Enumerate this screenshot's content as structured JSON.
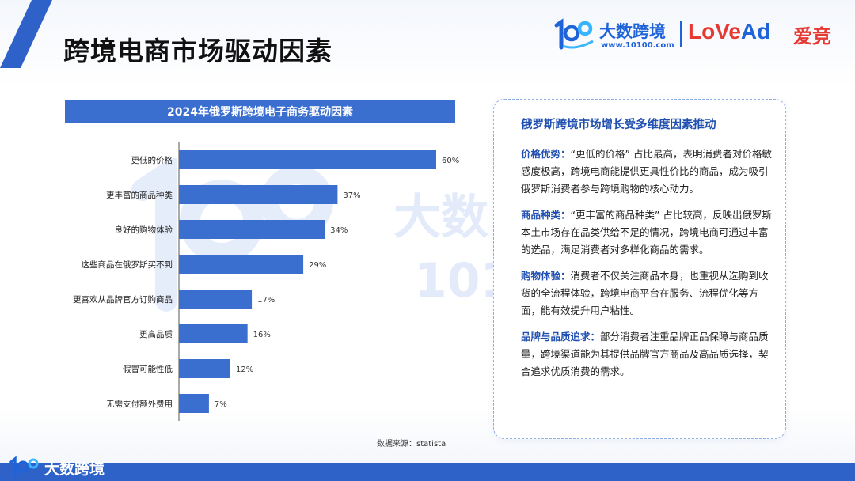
{
  "header": {
    "title": "跨境电商市场驱动因素",
    "brand_cn": "大数跨境",
    "brand_url": "www.10100.com",
    "partner_brand_love": "LoVe",
    "partner_brand_ad": "Ad",
    "partner_brand_cn": "爱竞"
  },
  "colors": {
    "accent": "#3b6fcf",
    "brand_blue": "#1f63d8",
    "partner_red": "#e53a33",
    "footer_bar": "#2e62c9"
  },
  "chart_data": {
    "type": "bar",
    "orientation": "horizontal",
    "title": "2024年俄罗斯跨境电子商务驱动因素",
    "categories": [
      "更低的价格",
      "更丰富的商品种类",
      "良好的购物体验",
      "这些商品在俄罗斯买不到",
      "更喜欢从品牌官方订购商品",
      "更高品质",
      "假冒可能性低",
      "无需支付额外费用"
    ],
    "values": [
      60,
      37,
      34,
      29,
      17,
      16,
      12,
      7
    ],
    "value_labels": [
      "60%",
      "37%",
      "34%",
      "29%",
      "17%",
      "16%",
      "12%",
      "7%"
    ],
    "unit": "%",
    "xlim": [
      0,
      100
    ],
    "grid": false,
    "legend": "none",
    "bar_color": "#3b6fcf"
  },
  "source_label": "数据来源：statista",
  "panel": {
    "title": "俄罗斯跨境市场增长受多维度因素推动",
    "paragraphs": [
      {
        "lead": "价格优势：",
        "text": "“更低的价格” 占比最高，表明消费者对价格敏感度极高，跨境电商能提供更具性价比的商品，成为吸引俄罗斯消费者参与跨境购物的核心动力。"
      },
      {
        "lead": "商品种类：",
        "text": "“更丰富的商品种类” 占比较高，反映出俄罗斯本土市场存在品类供给不足的情况，跨境电商可通过丰富的选品，满足消费者对多样化商品的需求。"
      },
      {
        "lead": "购物体验：",
        "text": "消费者不仅关注商品本身，也重视从选购到收货的全流程体验，跨境电商平台在服务、流程优化等方面，能有效提升用户粘性。"
      },
      {
        "lead": "品牌与品质追求：",
        "text": "部分消费者注重品牌正品保障与商品质量，跨境渠道能为其提供品牌官方商品及高品质选择，契合追求优质消费的需求。"
      }
    ]
  },
  "footer": {
    "brand_cn": "大数跨境"
  },
  "icons": {
    "logo_mark": "brand-1000-logo-icon",
    "watermark": "brand-watermark-icon"
  }
}
